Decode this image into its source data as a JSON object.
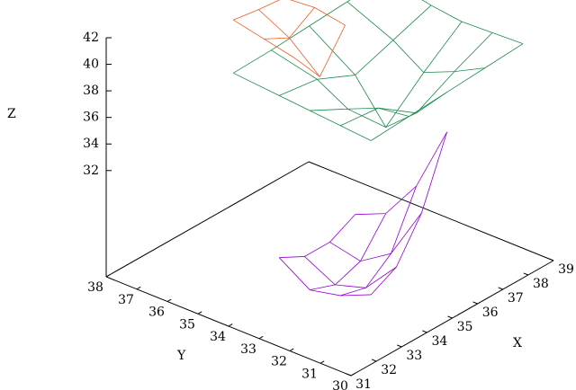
{
  "chart_data": {
    "type": "surface",
    "xlabel": "X",
    "ylabel": "Y",
    "zlabel": "Z",
    "xlim": [
      31,
      39
    ],
    "ylim": [
      30,
      38
    ],
    "zlim": [
      24,
      42
    ],
    "xticks": [
      31,
      32,
      33,
      34,
      35,
      36,
      37,
      38,
      39
    ],
    "yticks": [
      30,
      31,
      32,
      33,
      34,
      35,
      36,
      37,
      38
    ],
    "zticks": [
      32,
      34,
      36,
      38,
      40,
      42
    ],
    "series": [
      {
        "color": "#9400d3",
        "x": [
          33,
          34,
          35,
          36
        ],
        "y": [
          31,
          32,
          33,
          34
        ],
        "z": [
          [
            27,
            28,
            31,
            36
          ],
          [
            26,
            25.5,
            27,
            31
          ],
          [
            25.5,
            24.8,
            25.5,
            28
          ],
          [
            27,
            26,
            26,
            27
          ]
        ]
      },
      {
        "color": "#1a8a4a",
        "x": [
          33,
          34.5,
          36,
          37.5,
          39
        ],
        "y": [
          31,
          32,
          33,
          34,
          35.5
        ],
        "z": [
          [
            38.6,
            38.8,
            39,
            39.2,
            39.4
          ],
          [
            38.8,
            38.5,
            36.5,
            38,
            39.3
          ],
          [
            39,
            37.5,
            34.5,
            37,
            39.2
          ],
          [
            39.2,
            38.8,
            37.5,
            38.5,
            39.5
          ],
          [
            39.5,
            39.6,
            39.8,
            40,
            40.2
          ]
        ]
      },
      {
        "color": "#f05a1e",
        "x": [
          33,
          34,
          35
        ],
        "y": [
          33.5,
          34.5,
          35.5
        ],
        "z": [
          [
            42.5,
            40,
            42.8
          ],
          [
            43,
            42,
            43.2
          ],
          [
            43.5,
            43.2,
            43
          ]
        ]
      }
    ]
  }
}
